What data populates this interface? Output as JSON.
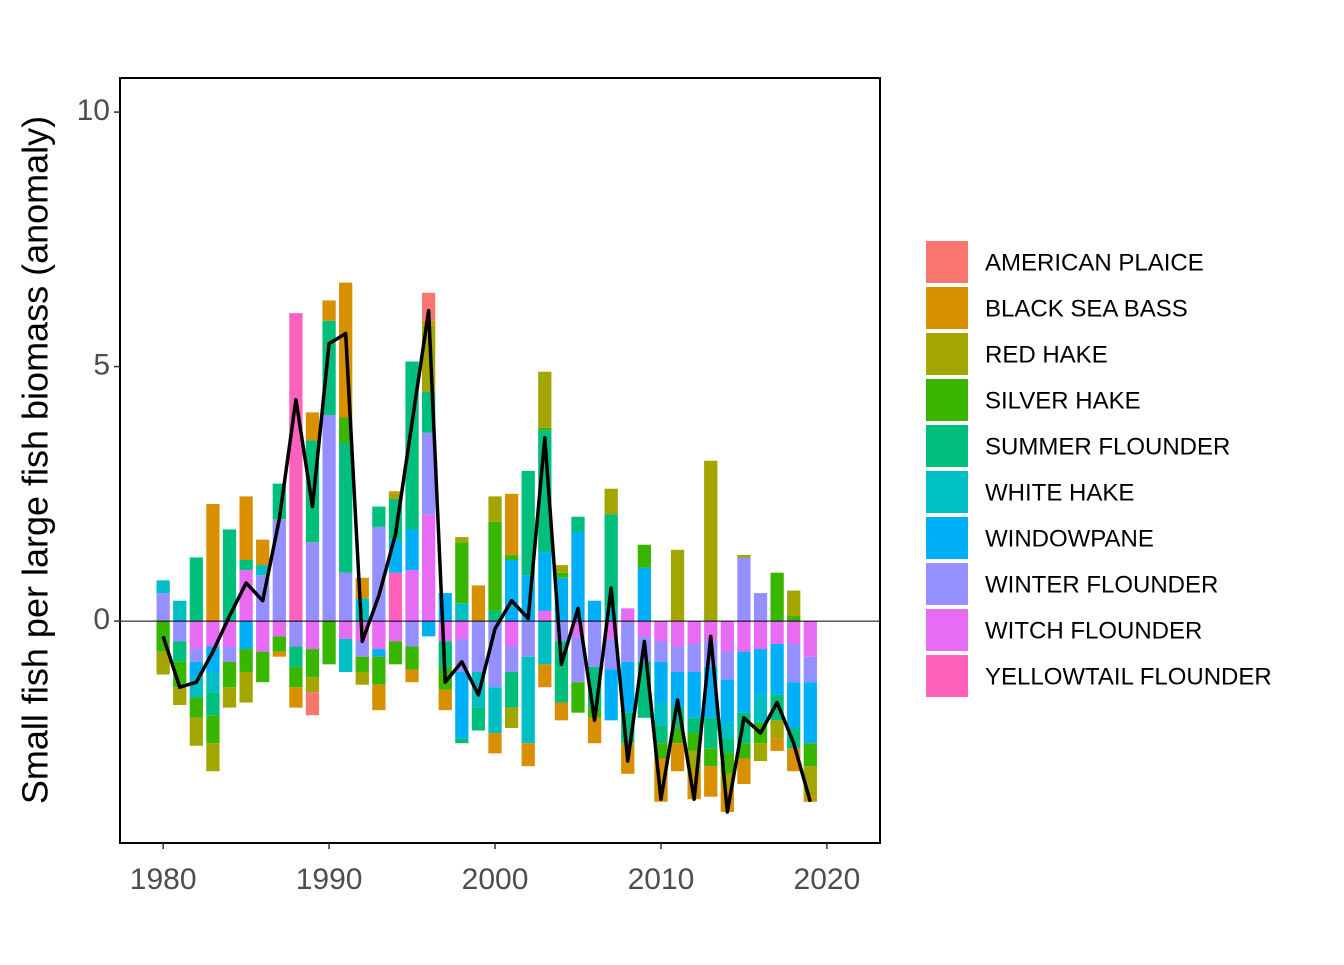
{
  "chart_data": {
    "type": "stacked_bar_line",
    "ylabel": "Small fish per large fish biomass (anomaly)",
    "x": [
      1980,
      1981,
      1982,
      1983,
      1984,
      1985,
      1986,
      1987,
      1988,
      1989,
      1990,
      1991,
      1992,
      1993,
      1994,
      1995,
      1996,
      1997,
      1998,
      1999,
      2000,
      2001,
      2002,
      2003,
      2004,
      2005,
      2006,
      2007,
      2008,
      2009,
      2010,
      2011,
      2012,
      2013,
      2014,
      2015,
      2016,
      2017,
      2018,
      2019
    ],
    "xlim": [
      1977.4,
      2023.2
    ],
    "xticks": [
      1980,
      1990,
      2000,
      2010,
      2020
    ],
    "ylim": [
      -4.36,
      10.67
    ],
    "yticks": [
      0,
      5,
      10
    ],
    "legend": "right",
    "series": [
      {
        "name": "AMERICAN PLAICE",
        "color": "#F8766D",
        "values": [
          0,
          0,
          0,
          0,
          0,
          0,
          0,
          0,
          0,
          -0.45,
          0,
          0,
          0,
          0,
          0,
          0,
          0.55,
          0,
          0,
          0,
          0,
          0,
          0,
          0,
          0,
          0,
          0,
          0,
          0,
          0,
          0,
          0,
          0,
          0,
          0,
          0,
          0,
          0,
          0,
          0
        ]
      },
      {
        "name": "BLACK SEA BASS",
        "color": "#D89000",
        "values": [
          0,
          0,
          0,
          2.3,
          0,
          1.25,
          0.5,
          -0.1,
          -0.4,
          0.55,
          0.4,
          2.65,
          0.4,
          -0.5,
          0.05,
          -0.25,
          0.1,
          -0.4,
          0,
          0.7,
          -0.4,
          1.2,
          -0.45,
          -0.45,
          -0.35,
          0,
          -0.5,
          0,
          -0.6,
          0,
          -0.85,
          -0.55,
          -0.55,
          -0.6,
          -0.45,
          -0.5,
          0,
          -0.25,
          -0.45,
          -0.1
        ]
      },
      {
        "name": "RED HAKE",
        "color": "#A3A500",
        "values": [
          -0.45,
          -0.35,
          -0.55,
          -0.55,
          -0.4,
          -0.6,
          0,
          0,
          0,
          -0.3,
          0,
          0,
          -0.25,
          0,
          0.1,
          0,
          1.3,
          0,
          0.1,
          0,
          0.5,
          -0.4,
          0,
          1.1,
          0.15,
          0,
          0,
          0.5,
          0,
          0,
          0,
          1.4,
          -0.4,
          3.15,
          -0.3,
          0.05,
          -0.35,
          -0.35,
          0.5,
          -0.6
        ]
      },
      {
        "name": "SILVER HAKE",
        "color": "#39B600",
        "values": [
          -0.6,
          -0.5,
          -0.4,
          -0.55,
          -0.5,
          -0.45,
          -0.6,
          -0.3,
          -0.4,
          -0.55,
          -0.85,
          0.5,
          -0.3,
          -0.55,
          -0.45,
          -0.45,
          0,
          -0.45,
          1.2,
          0,
          1.75,
          0.1,
          0,
          0.05,
          0.1,
          -0.6,
          -0.2,
          0,
          0,
          0.45,
          -0.3,
          -0.3,
          -0.35,
          -0.35,
          -0.4,
          -0.3,
          -0.4,
          0.95,
          0.1,
          -0.45
        ]
      },
      {
        "name": "SUMMER FLOUNDER",
        "color": "#00BF7D",
        "values": [
          0,
          -0.4,
          1.25,
          -0.45,
          1.8,
          0.2,
          0,
          0.7,
          -0.4,
          2.0,
          1.85,
          2.55,
          0,
          0.4,
          0.8,
          3.3,
          0.8,
          -0.5,
          -0.1,
          -0.45,
          0.2,
          -0.7,
          2.05,
          2.4,
          -1.2,
          0.3,
          -0.8,
          1.8,
          -0.6,
          -1.1,
          -0.35,
          -0.4,
          -0.3,
          -0.6,
          -0.3,
          -0.6,
          0,
          -0.5,
          -0.4,
          0
        ]
      },
      {
        "name": "WHITE HAKE",
        "color": "#00BFC4",
        "values": [
          0.25,
          0.4,
          -0.4,
          -0.4,
          0,
          0,
          0.2,
          0,
          0,
          0,
          0,
          -0.65,
          0.45,
          0,
          0,
          0,
          0,
          0,
          0.35,
          -0.7,
          -0.9,
          0,
          -1.7,
          -0.85,
          0,
          0,
          0,
          0.3,
          0,
          0,
          -0.45,
          0,
          0,
          0,
          -0.3,
          0,
          -0.55,
          0,
          0,
          0
        ]
      },
      {
        "name": "WINDOWPANE",
        "color": "#00B0F6",
        "values": [
          0,
          0,
          -0.3,
          -0.5,
          0,
          -0.55,
          0,
          0,
          0,
          0,
          0,
          0,
          0,
          -0.15,
          0.65,
          0.8,
          -0.3,
          0.55,
          -1.3,
          0,
          0,
          1.2,
          0.9,
          1.15,
          0.85,
          1.75,
          0.4,
          -1.0,
          -1.0,
          1.05,
          -0.8,
          -0.7,
          -0.9,
          -1.0,
          -0.85,
          -1.2,
          -0.9,
          -1.0,
          -0.9,
          -1.2
        ]
      },
      {
        "name": "WINTER FLOUNDER",
        "color": "#9590FF",
        "values": [
          0.55,
          -0.4,
          -0.25,
          0,
          -0.3,
          0,
          0.9,
          2.0,
          -0.5,
          1.55,
          4.05,
          0.95,
          -0.3,
          1.85,
          0,
          -0.5,
          1.6,
          0,
          -0.65,
          -1.0,
          -1.3,
          -0.5,
          -0.7,
          0,
          -0.4,
          -0.9,
          -0.9,
          -0.6,
          -0.8,
          -0.5,
          -0.4,
          -0.5,
          -0.55,
          -0.5,
          -0.55,
          1.25,
          0.55,
          0,
          -0.75,
          -0.5
        ]
      },
      {
        "name": "WITCH FLOUNDER",
        "color": "#E76BF3",
        "values": [
          0,
          0,
          -0.55,
          -0.5,
          -0.5,
          1.0,
          -0.6,
          -0.3,
          0,
          -0.55,
          0,
          -0.35,
          -0.4,
          -0.55,
          -0.4,
          1.0,
          2.1,
          -0.4,
          -0.35,
          0,
          0,
          -0.5,
          0,
          0.2,
          0,
          -0.3,
          0,
          -0.35,
          0.25,
          -0.3,
          -0.4,
          -0.5,
          -0.45,
          -0.4,
          -0.6,
          -0.6,
          -0.55,
          -0.45,
          -0.45,
          -0.7
        ]
      },
      {
        "name": "YELLOWTAIL FLOUNDER",
        "color": "#FF62BC",
        "values": [
          0,
          0,
          0,
          0,
          0,
          0,
          0,
          0,
          6.05,
          0,
          0,
          0,
          0,
          0,
          0.95,
          0,
          0,
          0,
          0,
          0,
          0,
          0,
          0,
          0,
          0,
          0,
          0,
          0,
          0,
          0,
          0,
          0,
          0,
          0,
          0,
          0,
          0,
          0,
          0,
          0
        ]
      }
    ],
    "line": {
      "color": "#000000",
      "values": [
        -0.3,
        -1.3,
        -1.2,
        -0.6,
        0.1,
        0.75,
        0.4,
        2.0,
        4.35,
        2.25,
        5.45,
        5.65,
        -0.4,
        0.5,
        1.7,
        3.9,
        6.1,
        -1.2,
        -0.8,
        -1.45,
        -0.15,
        0.4,
        0.05,
        3.6,
        -0.85,
        0.25,
        -1.95,
        0.65,
        -2.75,
        -0.4,
        -3.5,
        -1.55,
        -3.5,
        -0.3,
        -3.75,
        -1.9,
        -2.2,
        -1.6,
        -2.4,
        -3.55
      ]
    }
  }
}
